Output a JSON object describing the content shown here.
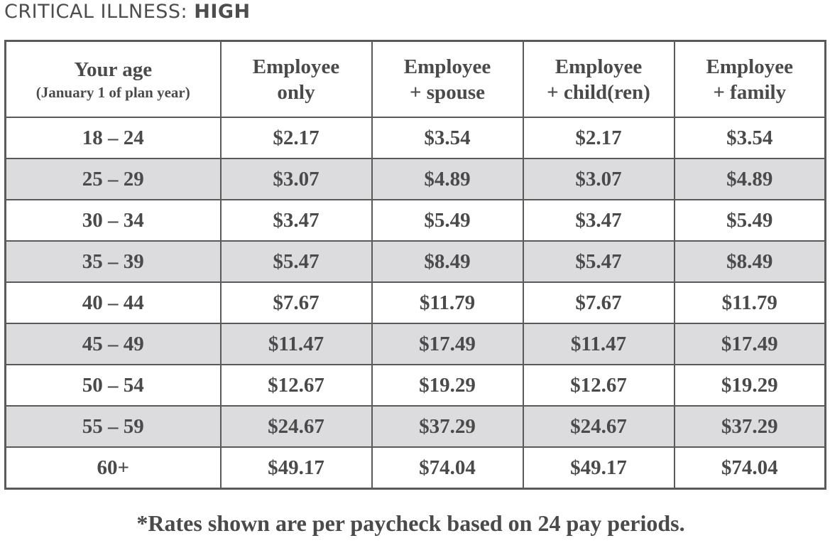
{
  "title": {
    "light": "CRITICAL ILLNESS: ",
    "bold": "HIGH"
  },
  "table": {
    "headers": [
      {
        "line1": "Your age",
        "sub": "(January 1 of plan year)"
      },
      {
        "line1": "Employee",
        "line2": "only"
      },
      {
        "line1": "Employee",
        "line2": "+ spouse"
      },
      {
        "line1": "Employee",
        "line2": "+ child(ren)"
      },
      {
        "line1": "Employee",
        "line2": "+ family"
      }
    ],
    "rows": [
      [
        "18 – 24",
        "$2.17",
        "$3.54",
        "$2.17",
        "$3.54"
      ],
      [
        "25 – 29",
        "$3.07",
        "$4.89",
        "$3.07",
        "$4.89"
      ],
      [
        "30 – 34",
        "$3.47",
        "$5.49",
        "$3.47",
        "$5.49"
      ],
      [
        "35 – 39",
        "$5.47",
        "$8.49",
        "$5.47",
        "$8.49"
      ],
      [
        "40 – 44",
        "$7.67",
        "$11.79",
        "$7.67",
        "$11.79"
      ],
      [
        "45 – 49",
        "$11.47",
        "$17.49",
        "$11.47",
        "$17.49"
      ],
      [
        "50 – 54",
        "$12.67",
        "$19.29",
        "$12.67",
        "$19.29"
      ],
      [
        "55 – 59",
        "$24.67",
        "$37.29",
        "$24.67",
        "$37.29"
      ],
      [
        "60+",
        "$49.17",
        "$74.04",
        "$49.17",
        "$74.04"
      ]
    ]
  },
  "footnote": "*Rates shown are per paycheck based on 24 pay periods."
}
